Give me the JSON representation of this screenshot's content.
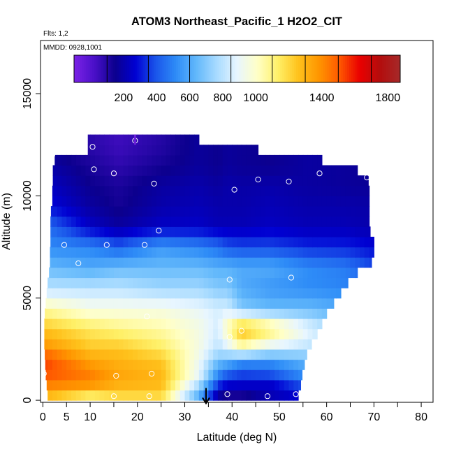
{
  "chart_data": {
    "type": "heatmap",
    "title": "ATOM3 Northeast_Pacific_1 H2O2_CIT",
    "flights_note": "Flts: 1,2",
    "dates_note": "MMDD: 0928,1001",
    "xlabel": "Latitude (deg N)",
    "ylabel": "Altitude (m)",
    "xlim": [
      -0.5,
      82.5
    ],
    "ylim": [
      -100,
      17600
    ],
    "x_ticks": [
      0,
      5,
      10,
      20,
      30,
      40,
      50,
      60,
      70,
      80
    ],
    "x_tick_labels": [
      "0",
      "5",
      "10",
      "20",
      "30",
      "40",
      "50",
      "60",
      "70",
      "80"
    ],
    "x_minor_ticks": [
      15,
      25,
      35,
      45,
      55,
      65,
      75
    ],
    "y_ticks": [
      0,
      5000,
      10000,
      15000
    ],
    "y_tick_labels": [
      "0",
      "5000",
      "10000",
      "15000"
    ],
    "colorbar": {
      "range": [
        -100,
        1875
      ],
      "tick_values": [
        200,
        400,
        600,
        800,
        1000,
        1400,
        1800
      ],
      "tick_labels": [
        "200",
        "400",
        "600",
        "800",
        "1000",
        "1400",
        "1800"
      ],
      "boundaries": [
        100,
        350,
        600,
        850,
        1100,
        1300,
        1500,
        1700
      ]
    },
    "colormap": [
      "#7B22E6",
      "#4A10C8",
      "#0C008E",
      "#0000D2",
      "#1A55EA",
      "#2E8CF7",
      "#62B8FB",
      "#A8DBFF",
      "#E8F6FF",
      "#FFFFC6",
      "#FFF068",
      "#FFC21C",
      "#FF9600",
      "#FF5A00",
      "#EA0000",
      "#B40D0D",
      "#A52A2A"
    ],
    "field_profiles": [
      {
        "lat": 0.5,
        "points": [
          [
            0,
            1250
          ],
          [
            500,
            1350
          ],
          [
            1000,
            1500
          ],
          [
            2000,
            1550
          ],
          [
            2500,
            1400
          ],
          [
            3500,
            1250
          ],
          [
            4500,
            1050
          ],
          [
            5500,
            800
          ],
          [
            6500,
            650
          ],
          [
            7500,
            520
          ],
          [
            8500,
            460
          ],
          [
            9500,
            300
          ],
          [
            10500,
            250
          ],
          [
            11500,
            200
          ],
          [
            12000,
            170
          ]
        ]
      },
      {
        "lat": 10,
        "points": [
          [
            0,
            1000
          ],
          [
            500,
            1300
          ],
          [
            1000,
            1450
          ],
          [
            2000,
            1350
          ],
          [
            2500,
            1250
          ],
          [
            3500,
            1150
          ],
          [
            4500,
            950
          ],
          [
            5500,
            800
          ],
          [
            6500,
            600
          ],
          [
            7500,
            500
          ],
          [
            8500,
            250
          ],
          [
            9500,
            180
          ],
          [
            10500,
            150
          ],
          [
            11500,
            120
          ],
          [
            12500,
            90
          ]
        ]
      },
      {
        "lat": 16,
        "points": [
          [
            0,
            1150
          ],
          [
            500,
            1250
          ],
          [
            1000,
            1350
          ],
          [
            2000,
            1300
          ],
          [
            2500,
            1250
          ],
          [
            3500,
            1100
          ],
          [
            4500,
            950
          ],
          [
            5500,
            800
          ],
          [
            6500,
            650
          ],
          [
            7500,
            420
          ],
          [
            8500,
            180
          ],
          [
            9500,
            130
          ],
          [
            10500,
            120
          ],
          [
            11500,
            80
          ],
          [
            12500,
            50
          ]
        ]
      },
      {
        "lat": 25,
        "points": [
          [
            0,
            1150
          ],
          [
            500,
            1250
          ],
          [
            1000,
            1300
          ],
          [
            2000,
            1250
          ],
          [
            2500,
            1150
          ],
          [
            3500,
            1050
          ],
          [
            4500,
            950
          ],
          [
            5500,
            750
          ],
          [
            6500,
            650
          ],
          [
            7500,
            550
          ],
          [
            8500,
            250
          ],
          [
            9500,
            200
          ],
          [
            10500,
            180
          ],
          [
            11500,
            130
          ],
          [
            12500,
            100
          ]
        ]
      },
      {
        "lat": 33,
        "points": [
          [
            0,
            600
          ],
          [
            500,
            650
          ],
          [
            1000,
            880
          ],
          [
            2000,
            920
          ],
          [
            2500,
            950
          ],
          [
            3500,
            950
          ],
          [
            4500,
            900
          ],
          [
            5500,
            750
          ],
          [
            6500,
            650
          ],
          [
            7500,
            500
          ],
          [
            8500,
            250
          ],
          [
            9500,
            220
          ],
          [
            10500,
            200
          ],
          [
            11500,
            170
          ]
        ]
      },
      {
        "lat": 37,
        "points": [
          [
            0,
            150
          ],
          [
            500,
            230
          ],
          [
            1000,
            450
          ],
          [
            2000,
            680
          ],
          [
            2500,
            800
          ],
          [
            3500,
            850
          ],
          [
            4500,
            850
          ],
          [
            5500,
            700
          ],
          [
            6500,
            620
          ],
          [
            7500,
            450
          ],
          [
            8500,
            220
          ],
          [
            9500,
            200
          ],
          [
            10500,
            180
          ],
          [
            11500,
            150
          ]
        ]
      },
      {
        "lat": 39,
        "points": [
          [
            0,
            60
          ],
          [
            500,
            200
          ],
          [
            1000,
            320
          ],
          [
            2000,
            650
          ],
          [
            2500,
            850
          ],
          [
            3500,
            1050
          ],
          [
            4500,
            850
          ],
          [
            5500,
            700
          ],
          [
            6500,
            620
          ],
          [
            7500,
            400
          ],
          [
            8500,
            220
          ],
          [
            9500,
            200
          ],
          [
            10500,
            200
          ],
          [
            11500,
            170
          ]
        ]
      },
      {
        "lat": 42,
        "points": [
          [
            0,
            60
          ],
          [
            500,
            200
          ],
          [
            1000,
            300
          ],
          [
            2000,
            550
          ],
          [
            2500,
            1000
          ],
          [
            3500,
            1300
          ],
          [
            4500,
            700
          ],
          [
            5500,
            600
          ],
          [
            6500,
            600
          ],
          [
            7500,
            380
          ],
          [
            8500,
            220
          ],
          [
            9500,
            200
          ],
          [
            10500,
            190
          ],
          [
            11500,
            160
          ]
        ]
      },
      {
        "lat": 48,
        "points": [
          [
            0,
            250
          ],
          [
            500,
            180
          ],
          [
            1000,
            320
          ],
          [
            2000,
            550
          ],
          [
            2500,
            850
          ],
          [
            3500,
            1150
          ],
          [
            4500,
            650
          ],
          [
            5500,
            550
          ],
          [
            6500,
            600
          ],
          [
            7500,
            380
          ],
          [
            8500,
            240
          ],
          [
            9500,
            220
          ],
          [
            10500,
            200
          ],
          [
            11500,
            150
          ]
        ]
      },
      {
        "lat": 56,
        "points": [
          [
            0,
            250
          ],
          [
            500,
            320
          ],
          [
            1000,
            500
          ],
          [
            2000,
            650
          ],
          [
            2500,
            800
          ],
          [
            3500,
            900
          ],
          [
            4500,
            650
          ],
          [
            5500,
            520
          ],
          [
            6500,
            520
          ],
          [
            7500,
            330
          ],
          [
            8500,
            220
          ],
          [
            9500,
            200
          ],
          [
            10500,
            180
          ]
        ]
      },
      {
        "lat": 64,
        "points": [
          [
            0,
            400
          ],
          [
            500,
            450
          ],
          [
            1000,
            550
          ],
          [
            2000,
            650
          ],
          [
            2500,
            700
          ],
          [
            3500,
            720
          ],
          [
            4500,
            600
          ],
          [
            5500,
            500
          ],
          [
            6500,
            480
          ],
          [
            7500,
            320
          ],
          [
            8500,
            220
          ],
          [
            9500,
            200
          ],
          [
            10500,
            170
          ]
        ]
      },
      {
        "lat": 70,
        "points": [
          [
            0,
            400
          ],
          [
            500,
            450
          ],
          [
            1000,
            550
          ],
          [
            2000,
            600
          ],
          [
            2500,
            650
          ],
          [
            3500,
            650
          ],
          [
            4500,
            560
          ],
          [
            5500,
            480
          ],
          [
            6500,
            380
          ],
          [
            7500,
            280
          ],
          [
            8500,
            200
          ],
          [
            9500,
            190
          ],
          [
            10500,
            160
          ],
          [
            11500,
            150
          ]
        ]
      }
    ],
    "extent_by_altitude": [
      [
        0,
        1.0,
        54.0
      ],
      [
        500,
        0.8,
        54.5
      ],
      [
        1000,
        0.6,
        54.8
      ],
      [
        1500,
        0.5,
        55.3
      ],
      [
        2000,
        0.4,
        55.8
      ],
      [
        2500,
        0.3,
        56.8
      ],
      [
        3000,
        0.3,
        58.0
      ],
      [
        3500,
        0.3,
        59.0
      ],
      [
        4000,
        0.4,
        60.0
      ],
      [
        4500,
        0.6,
        61.5
      ],
      [
        5000,
        0.8,
        63.0
      ],
      [
        5500,
        1.0,
        64.5
      ],
      [
        6000,
        1.3,
        66.5
      ],
      [
        6500,
        1.5,
        69.5
      ],
      [
        7000,
        1.5,
        70.0
      ],
      [
        7500,
        1.6,
        70.0
      ],
      [
        8000,
        1.6,
        69.2
      ],
      [
        8500,
        1.6,
        69.0
      ],
      [
        9000,
        1.7,
        69.0
      ],
      [
        9500,
        2.0,
        69.0
      ],
      [
        10000,
        2.0,
        69.0
      ],
      [
        10500,
        2.1,
        68.8
      ],
      [
        11000,
        2.1,
        66.5
      ],
      [
        11500,
        2.5,
        59.0
      ],
      [
        12000,
        9.5,
        45.5
      ],
      [
        12500,
        9.5,
        33.0
      ]
    ],
    "sample_points": [
      [
        2.0,
        12000
      ],
      [
        10.5,
        12400
      ],
      [
        19.5,
        12700
      ],
      [
        10.8,
        11300
      ],
      [
        15.0,
        11100
      ],
      [
        23.5,
        10600
      ],
      [
        40.5,
        10300
      ],
      [
        45.5,
        10800
      ],
      [
        52.0,
        10700
      ],
      [
        58.5,
        11100
      ],
      [
        68.5,
        10900
      ],
      [
        24.5,
        8300
      ],
      [
        4.5,
        7600
      ],
      [
        13.5,
        7600
      ],
      [
        21.5,
        7600
      ],
      [
        7.5,
        6700
      ],
      [
        39.5,
        5900
      ],
      [
        52.5,
        6000
      ],
      [
        71.0,
        6000
      ],
      [
        22.0,
        4100
      ],
      [
        39.5,
        3100
      ],
      [
        42.0,
        3400
      ],
      [
        0.2,
        1300
      ],
      [
        15.5,
        1200
      ],
      [
        23.0,
        1300
      ],
      [
        15.0,
        200
      ],
      [
        22.5,
        200
      ],
      [
        39.0,
        300
      ],
      [
        47.5,
        200
      ],
      [
        53.5,
        300
      ]
    ],
    "markers": [
      {
        "type": "arrow",
        "lat": 34.5,
        "alt_top": 600,
        "alt_bottom": -150
      },
      {
        "type": "bar",
        "lat": 19.5,
        "alt_bottom": 12500,
        "alt_top": 13000
      }
    ],
    "grid": false
  }
}
